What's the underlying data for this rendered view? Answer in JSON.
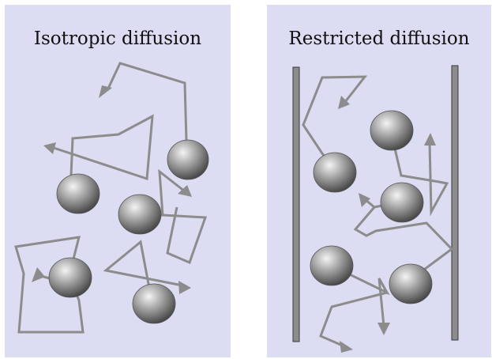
{
  "panels": {
    "left": {
      "title": "Isotropic diffusion"
    },
    "right": {
      "title": "Restricted diffusion"
    }
  },
  "colors": {
    "background": "#ffffff",
    "panel": "#dcdcf2",
    "path": "#8c8c8c",
    "wall": "#8c8c8c",
    "sphere_light": "#f2f2f2",
    "sphere_mid": "#9a9a9a",
    "sphere_dark": "#3a3a3a",
    "title_text": "#111111"
  }
}
